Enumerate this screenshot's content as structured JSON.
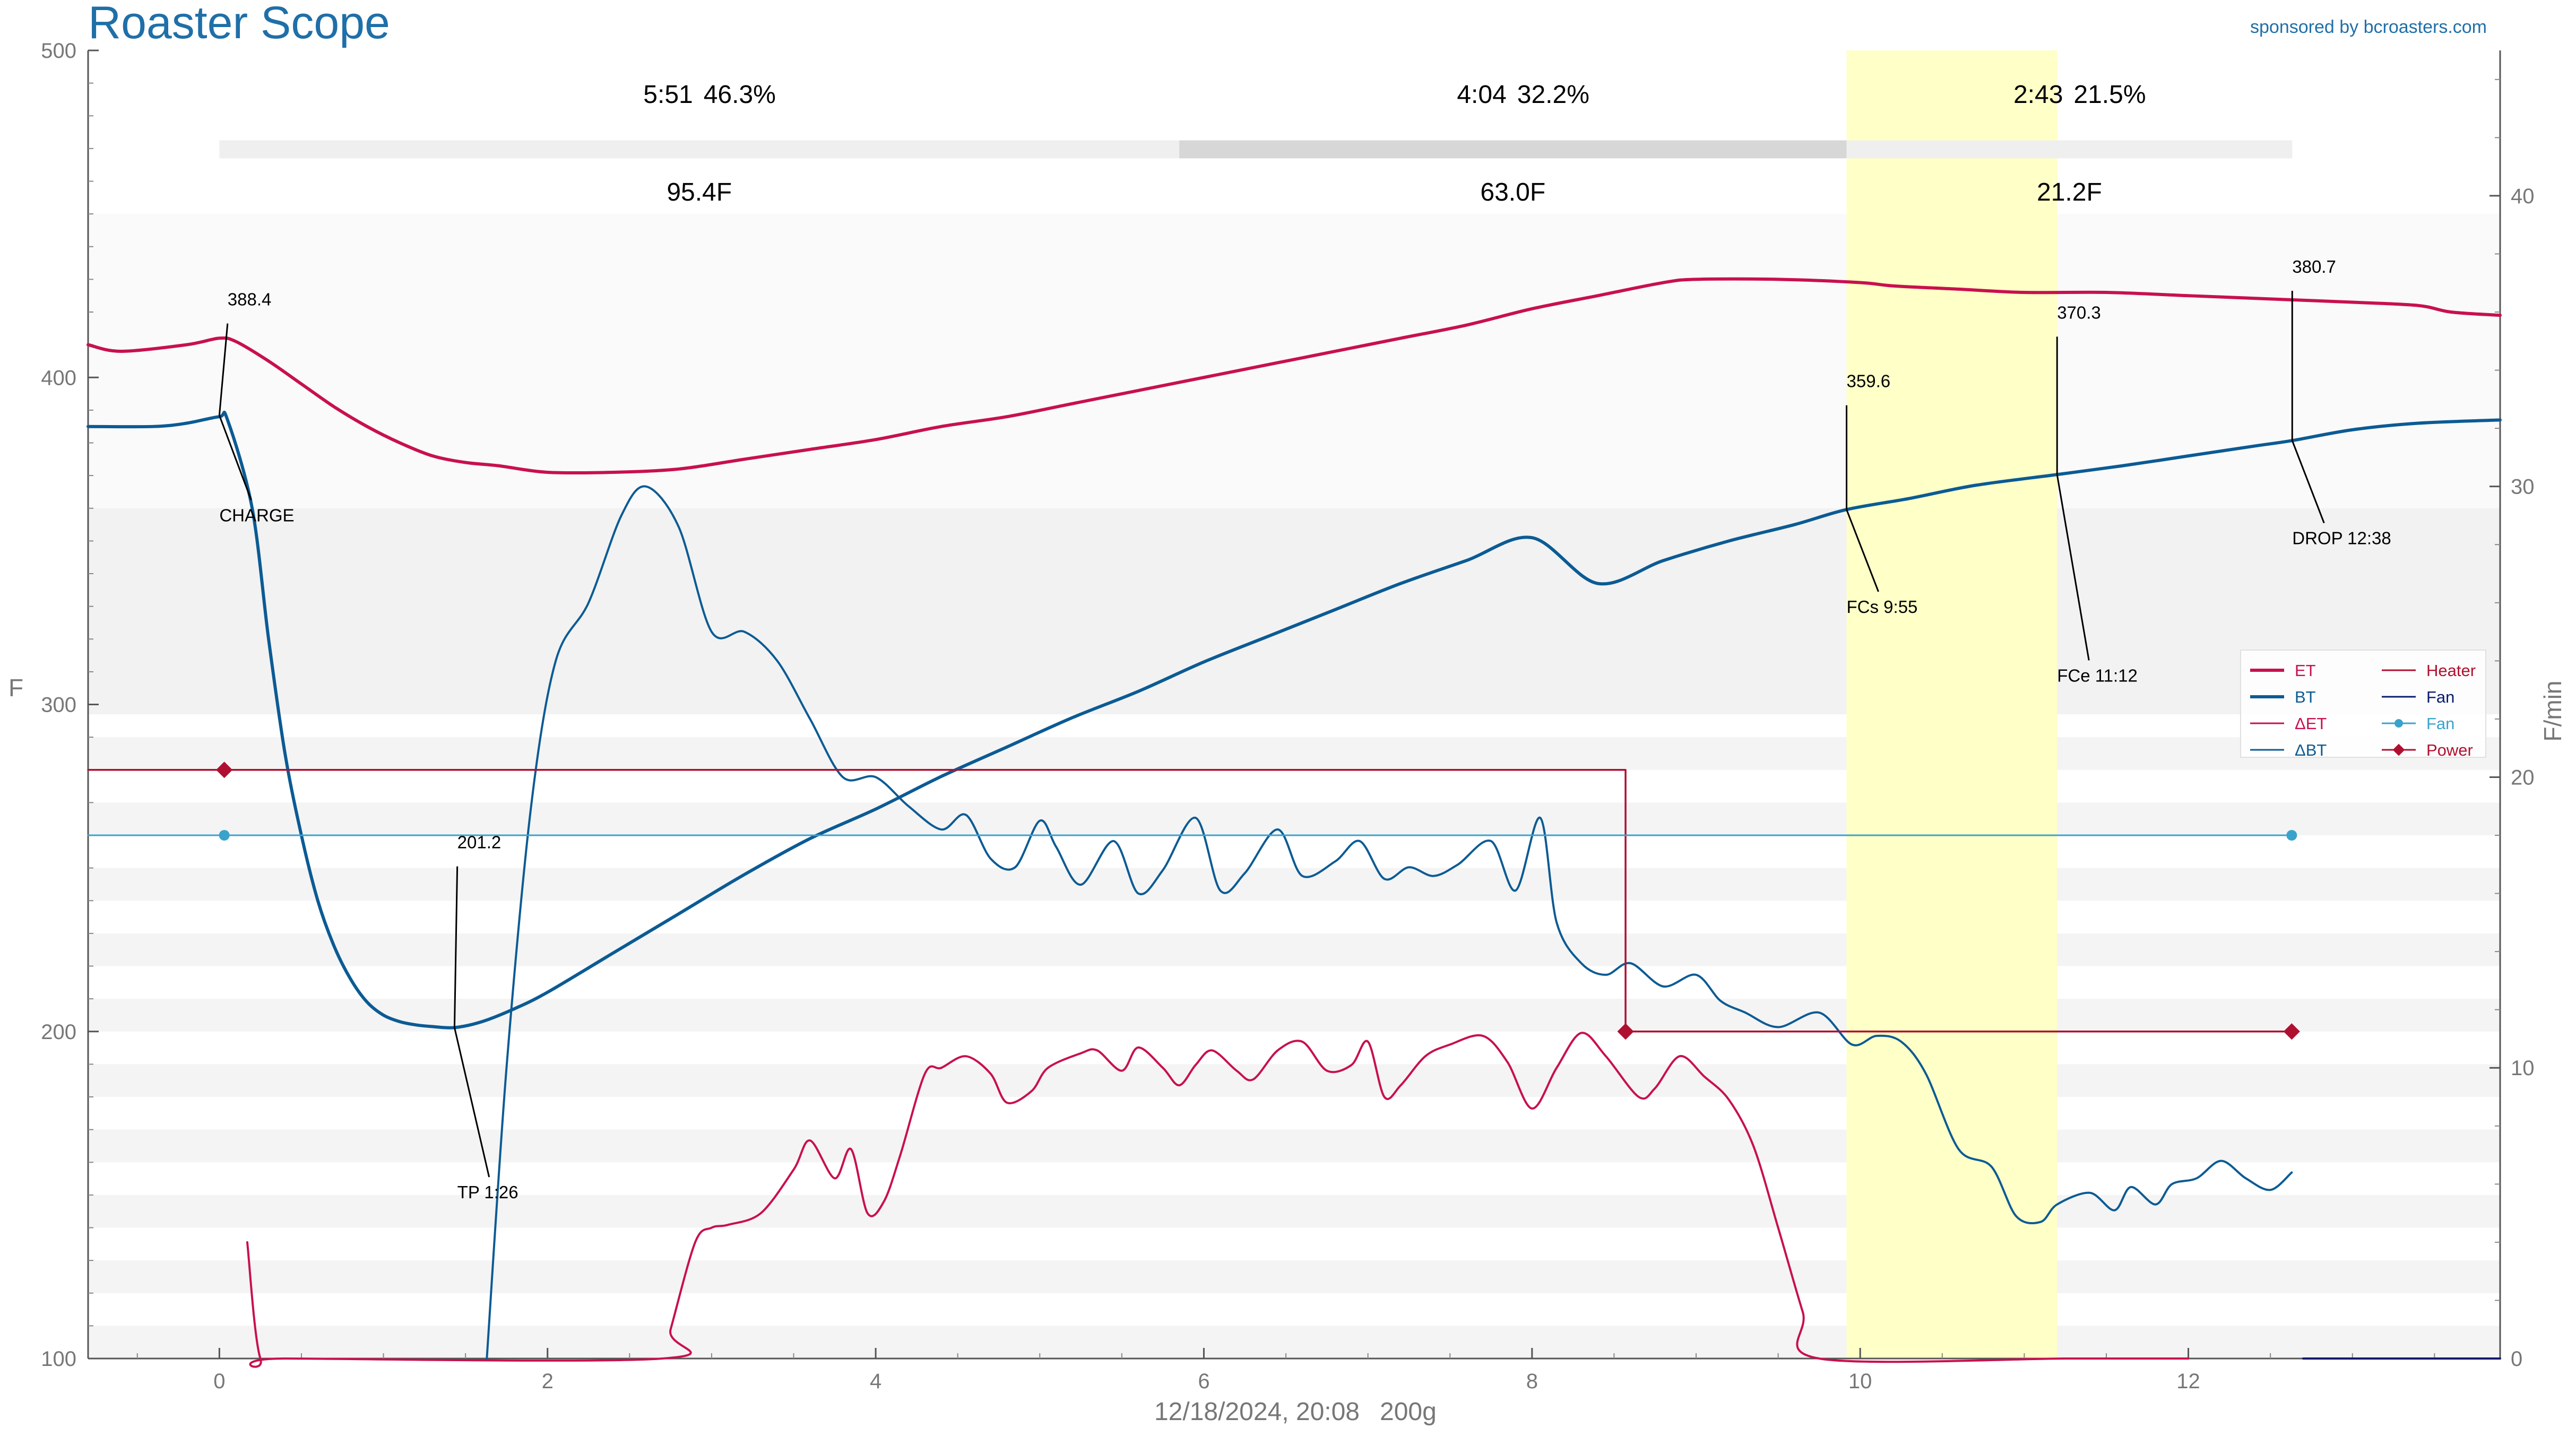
{
  "header": {
    "title": "Roaster Scope",
    "sponsor": "sponsored by bcroasters.com"
  },
  "footer": {
    "date": "12/18/2024, 20:08",
    "weight": "200g"
  },
  "colors": {
    "et": "#c8104e",
    "bt": "#0b5b94",
    "delta_et": "#c8104e",
    "delta_bt": "#0b5b94",
    "heater": "#b01030",
    "fan": "#0a1a6e",
    "fan_setting": "#3aa3cc",
    "power": "#b01030",
    "first_crack_band": "#ffffc8"
  },
  "chart_data": {
    "type": "line",
    "xlim": [
      -0.8,
      13.9
    ],
    "ylim": [
      100,
      500
    ],
    "y2lim": [
      0,
      45
    ],
    "xticks": [
      0,
      2,
      4,
      6,
      8,
      10,
      12
    ],
    "yticks": [
      100,
      200,
      300,
      400,
      500
    ],
    "y2ticks": [
      0,
      10,
      20,
      30,
      40
    ],
    "ylabel": "F",
    "y2label": "F/min",
    "first_crack_band": [
      9.917,
      11.2
    ],
    "phases": [
      {
        "time": "5:51",
        "percent": "46.3%",
        "rise": "95.4F",
        "start": 0,
        "end": 5.85
      },
      {
        "time": "4:04",
        "percent": "32.2%",
        "rise": "63.0F",
        "start": 5.85,
        "end": 9.917
      },
      {
        "time": "2:43",
        "percent": "21.5%",
        "rise": "21.2F",
        "start": 9.917,
        "end": 12.633
      }
    ],
    "events": [
      {
        "label": "CHARGE",
        "value": "388.4",
        "x": 0,
        "y": 388.4,
        "vx": 0.05,
        "vy": 422,
        "lx": 0.0,
        "ly": 356
      },
      {
        "label": "TP 1:26",
        "value": "201.2",
        "x": 1.433,
        "y": 201.2,
        "vx": 1.45,
        "vy": 256,
        "lx": 1.45,
        "ly": 149
      },
      {
        "label": "FCs 9:55",
        "value": "359.6",
        "x": 9.917,
        "y": 359.6,
        "vx": 9.917,
        "vy": 397,
        "lx": 9.917,
        "ly": 328
      },
      {
        "label": "FCe 11:12",
        "value": "370.3",
        "x": 11.2,
        "y": 370.3,
        "vx": 11.2,
        "vy": 418,
        "lx": 11.2,
        "ly": 307
      },
      {
        "label": "DROP 12:38",
        "value": "380.7",
        "x": 12.633,
        "y": 380.7,
        "vx": 12.633,
        "vy": 432,
        "lx": 12.633,
        "ly": 349
      }
    ],
    "legend": {
      "placement": "right",
      "entries": [
        "ET",
        "BT",
        "ΔET",
        "ΔBT",
        "Heater",
        "Fan",
        "Fan",
        "Power"
      ]
    },
    "series": [
      {
        "name": "ET",
        "axis": "left",
        "x": [
          -0.8,
          -0.6,
          -0.2,
          0,
          0.1,
          0.3,
          0.5,
          0.7,
          0.9,
          1.1,
          1.3,
          1.5,
          1.7,
          2.0,
          2.4,
          2.8,
          3.2,
          3.6,
          4.0,
          4.4,
          4.8,
          5.2,
          5.6,
          6.0,
          6.4,
          6.8,
          7.2,
          7.6,
          8.0,
          8.4,
          8.8,
          9.0,
          9.5,
          10.0,
          10.2,
          10.6,
          11.0,
          11.5,
          12.0,
          12.5,
          13.0,
          13.4,
          13.6,
          13.9
        ],
        "y": [
          410,
          408,
          410,
          412,
          411,
          405,
          398,
          391,
          385,
          380,
          376,
          374,
          373,
          371,
          371,
          372,
          375,
          378,
          381,
          385,
          388,
          392,
          396,
          400,
          404,
          408,
          412,
          416,
          421,
          425,
          429,
          430,
          430,
          429,
          428,
          427,
          426,
          426,
          425,
          424,
          423,
          422,
          420,
          419
        ]
      },
      {
        "name": "BT",
        "axis": "left",
        "x": [
          -0.8,
          -0.4,
          -0.2,
          0,
          0.05,
          0.2,
          0.3,
          0.4,
          0.5,
          0.6,
          0.7,
          0.8,
          0.9,
          1.0,
          1.1,
          1.2,
          1.3,
          1.433,
          1.6,
          1.8,
          2.0,
          2.4,
          2.8,
          3.2,
          3.6,
          4.0,
          4.4,
          4.8,
          5.2,
          5.6,
          6.0,
          6.4,
          6.8,
          7.2,
          7.6,
          8.0,
          8.4,
          8.8,
          9.2,
          9.6,
          9.917,
          10.3,
          10.7,
          11.2,
          11.6,
          12.0,
          12.4,
          12.633,
          13.0,
          13.4,
          13.9
        ],
        "y": [
          385,
          385,
          386,
          388,
          387,
          360,
          320,
          285,
          260,
          240,
          226,
          216,
          209,
          205,
          203,
          202,
          201.5,
          201.2,
          203,
          207,
          212,
          224,
          236,
          248,
          259,
          268,
          278,
          287,
          296,
          304,
          313,
          321,
          329,
          337,
          344,
          351,
          337,
          344,
          350,
          355,
          359.6,
          363,
          367,
          370.3,
          373,
          376,
          379,
          380.7,
          384,
          386,
          387
        ]
      },
      {
        "name": "ΔET",
        "axis": "right",
        "x": [
          0.17,
          0.25,
          0.4,
          2.7,
          2.75,
          2.9,
          3.0,
          3.1,
          3.3,
          3.5,
          3.6,
          3.75,
          3.85,
          3.95,
          4.05,
          4.15,
          4.3,
          4.4,
          4.55,
          4.7,
          4.8,
          4.95,
          5.05,
          5.25,
          5.35,
          5.5,
          5.6,
          5.75,
          5.85,
          5.95,
          6.05,
          6.2,
          6.3,
          6.45,
          6.6,
          6.75,
          6.9,
          7.0,
          7.1,
          7.2,
          7.35,
          7.5,
          7.7,
          7.85,
          8.0,
          8.15,
          8.3,
          8.45,
          8.65,
          8.75,
          8.9,
          9.05,
          9.2,
          9.35,
          9.5,
          9.65,
          9.75,
          11.25,
          11.6,
          12.0
        ],
        "y": [
          4,
          0,
          0,
          0,
          1,
          4,
          4.5,
          4.6,
          5,
          6.5,
          7.5,
          6.2,
          7.2,
          5.0,
          5.4,
          7,
          9.8,
          10,
          10.4,
          9.8,
          8.8,
          9.2,
          10,
          10.5,
          10.6,
          9.9,
          10.7,
          10.0,
          9.4,
          10.1,
          10.6,
          9.9,
          9.6,
          10.6,
          10.9,
          9.9,
          10.1,
          10.9,
          9.0,
          9.4,
          10.4,
          10.8,
          11.1,
          10.2,
          8.6,
          10.0,
          11.2,
          10.4,
          9.0,
          9.3,
          10.4,
          9.7,
          8.9,
          7.3,
          4.5,
          1.6,
          0,
          0,
          0,
          0
        ]
      },
      {
        "name": "ΔBT",
        "axis": "right",
        "x": [
          1.63,
          1.75,
          1.9,
          2.05,
          2.25,
          2.45,
          2.6,
          2.8,
          3.0,
          3.2,
          3.4,
          3.6,
          3.8,
          4.0,
          4.2,
          4.4,
          4.55,
          4.7,
          4.85,
          5.0,
          5.1,
          5.25,
          5.45,
          5.6,
          5.75,
          5.95,
          6.1,
          6.25,
          6.45,
          6.6,
          6.8,
          6.95,
          7.1,
          7.25,
          7.4,
          7.55,
          7.75,
          7.9,
          8.05,
          8.15,
          8.3,
          8.45,
          8.6,
          8.8,
          9.0,
          9.15,
          9.3,
          9.5,
          9.75,
          9.95,
          10.1,
          10.25,
          10.4,
          10.6,
          10.8,
          10.95,
          11.1,
          11.2,
          11.4,
          11.55,
          11.65,
          11.8,
          11.9,
          12.05,
          12.2,
          12.35,
          12.5,
          12.63
        ],
        "y": [
          0,
          10,
          19,
          24,
          26,
          29,
          30,
          28.6,
          25,
          25,
          24,
          22,
          20,
          20,
          19,
          18.2,
          18.7,
          17.2,
          16.9,
          18.5,
          17.6,
          16.3,
          17.8,
          16.0,
          16.8,
          18.6,
          16.1,
          16.7,
          18.2,
          16.6,
          17.1,
          17.8,
          16.5,
          16.9,
          16.6,
          17.0,
          17.8,
          16.1,
          18.6,
          15.0,
          13.6,
          13.2,
          13.6,
          12.8,
          13.2,
          12.3,
          11.9,
          11.4,
          11.9,
          10.8,
          11.1,
          10.9,
          9.8,
          7.2,
          6.6,
          4.9,
          4.7,
          5.3,
          5.7,
          5.1,
          5.9,
          5.3,
          6.0,
          6.2,
          6.8,
          6.2,
          5.8,
          6.4
        ]
      },
      {
        "name": "Heater",
        "axis": "left",
        "x": [
          -0.8,
          8.57,
          8.57,
          12.63
        ],
        "y": [
          280,
          280,
          200,
          200
        ]
      },
      {
        "name": "Fan",
        "axis": "right",
        "x": [
          12.7,
          13.9
        ],
        "y": [
          0,
          0
        ]
      },
      {
        "name": "Fan",
        "axis": "left",
        "x": [
          -0.8,
          12.63
        ],
        "y": [
          260,
          260
        ],
        "markers_x": [
          0.03,
          12.63
        ]
      },
      {
        "name": "Power",
        "axis": "left",
        "x": [
          0.03,
          8.57,
          12.63
        ],
        "y": [
          280,
          200,
          200
        ],
        "markers_x": [
          0.03,
          8.57,
          12.63
        ]
      }
    ]
  }
}
